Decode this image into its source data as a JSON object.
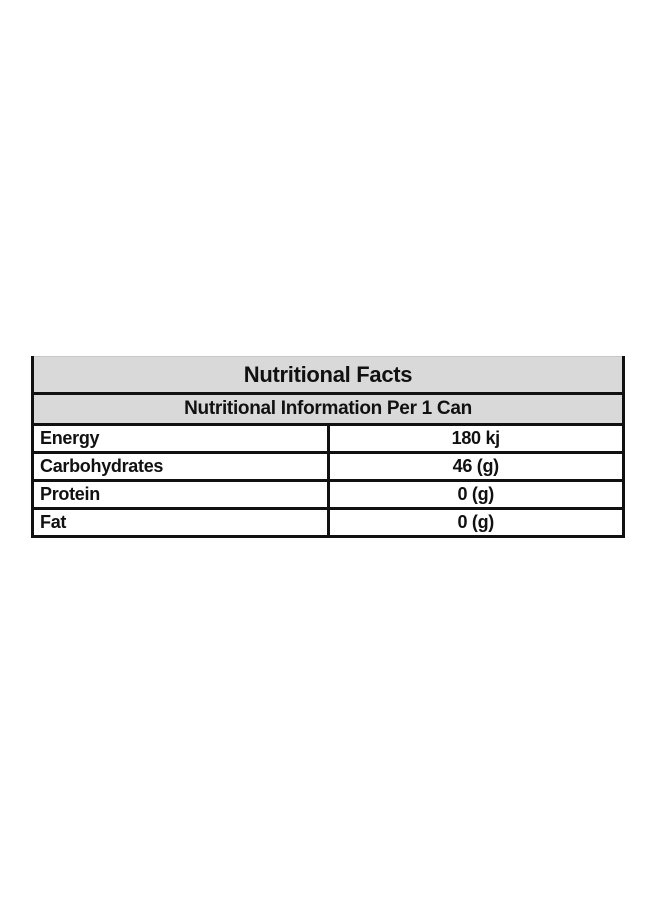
{
  "page": {
    "background": "#ffffff"
  },
  "nutrition_table": {
    "title": "Nutritional Facts",
    "subtitle": "Nutritional Information Per 1 Can",
    "rows": [
      {
        "label": "Energy",
        "value": "180 kj"
      },
      {
        "label": "Carbohydrates",
        "value": "46 (g)"
      },
      {
        "label": "Protein",
        "value": "0 (g)"
      },
      {
        "label": "Fat",
        "value": "0 (g)"
      }
    ],
    "colors": {
      "header_bg": "#d9d9d9",
      "border": "#111111",
      "text": "#111111"
    }
  }
}
